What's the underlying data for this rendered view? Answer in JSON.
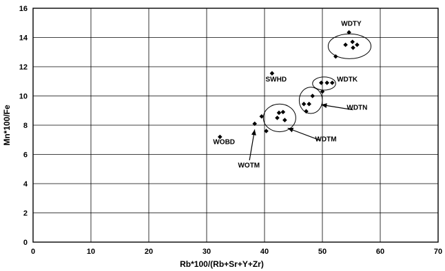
{
  "chart_data": {
    "type": "scatter",
    "xlabel": "Rb*100/(Rb+Sr+Y+Zr)",
    "ylabel": "Mn*100/Fe",
    "xlim": [
      0,
      70
    ],
    "ylim": [
      0,
      16
    ],
    "xticks": [
      0,
      10,
      20,
      30,
      40,
      50,
      60,
      70
    ],
    "yticks": [
      0,
      2,
      4,
      6,
      8,
      10,
      12,
      14,
      16
    ],
    "grid": true,
    "marker": "diamond",
    "series": [
      {
        "points": [
          {
            "x": 32.3,
            "y": 7.2
          },
          {
            "x": 38.3,
            "y": 8.1
          },
          {
            "x": 39.5,
            "y": 8.6
          },
          {
            "x": 40.3,
            "y": 7.6
          },
          {
            "x": 41.3,
            "y": 11.55
          },
          {
            "x": 42.2,
            "y": 8.5
          },
          {
            "x": 42.5,
            "y": 8.85
          },
          {
            "x": 43.2,
            "y": 8.9
          },
          {
            "x": 43.5,
            "y": 8.35
          },
          {
            "x": 46.8,
            "y": 9.45
          },
          {
            "x": 47.2,
            "y": 8.95
          },
          {
            "x": 47.7,
            "y": 9.45
          },
          {
            "x": 48.3,
            "y": 10.0
          },
          {
            "x": 49.8,
            "y": 10.9
          },
          {
            "x": 50.0,
            "y": 10.3
          },
          {
            "x": 50.8,
            "y": 10.9
          },
          {
            "x": 51.7,
            "y": 10.9
          },
          {
            "x": 52.3,
            "y": 12.7
          },
          {
            "x": 54.0,
            "y": 13.5
          },
          {
            "x": 54.6,
            "y": 14.35
          },
          {
            "x": 55.2,
            "y": 13.7
          },
          {
            "x": 55.3,
            "y": 13.3
          },
          {
            "x": 56.0,
            "y": 13.5
          }
        ]
      }
    ],
    "annotations": [
      {
        "text": "WDTY",
        "x": 55.0,
        "y": 14.8
      },
      {
        "text": "SWHD",
        "x": 42.0,
        "y": 11.0
      },
      {
        "text": "WDTK",
        "x": 54.3,
        "y": 11.0
      },
      {
        "text": "WDTN",
        "x": 56.0,
        "y": 9.05
      },
      {
        "text": "WDTM",
        "x": 50.6,
        "y": 6.9
      },
      {
        "text": "WOBD",
        "x": 33.0,
        "y": 6.7
      },
      {
        "text": "WOTM",
        "x": 37.3,
        "y": 5.1
      }
    ],
    "groups": [
      {
        "label": "WDTY",
        "cx": 54.7,
        "cy": 13.4,
        "rx": 3.7,
        "ry": 0.85
      },
      {
        "label": "WDTK",
        "cx": 50.3,
        "cy": 10.85,
        "rx": 2.0,
        "ry": 0.45
      },
      {
        "label": "WDTN",
        "cx": 48.0,
        "cy": 9.7,
        "rx": 2.0,
        "ry": 0.9
      },
      {
        "label": "WDTM",
        "cx": 42.6,
        "cy": 8.5,
        "rx": 2.8,
        "ry": 0.95
      }
    ],
    "arrows": [
      {
        "label": "WDTN",
        "from": {
          "x": 55.3,
          "y": 9.05
        },
        "to": {
          "x": 49.8,
          "y": 9.4
        }
      },
      {
        "label": "WDTM",
        "from": {
          "x": 49.7,
          "y": 6.95
        },
        "to": {
          "x": 44.0,
          "y": 7.8
        }
      },
      {
        "label": "WOTM",
        "from": {
          "x": 37.4,
          "y": 5.6
        },
        "to": {
          "x": 38.3,
          "y": 7.7
        }
      }
    ]
  }
}
